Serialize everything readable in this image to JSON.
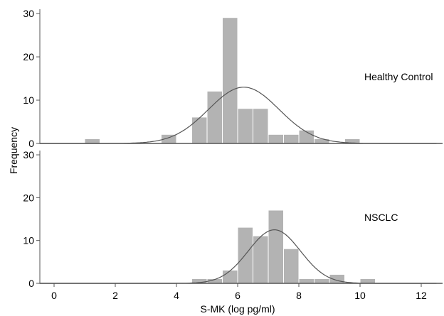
{
  "chart_data": {
    "type": "bar",
    "chart_kind": "histogram with fitted normal curves",
    "xlabel": "S-MK (log pg/ml)",
    "ylabel": "Frequency",
    "xlim": [
      -0.5,
      12.5
    ],
    "x_ticks": [
      0,
      2,
      4,
      6,
      8,
      10,
      12
    ],
    "bin_width": 0.5,
    "grid": false,
    "panels": [
      {
        "label": "Healthy Control",
        "ylim": [
          0,
          31
        ],
        "y_ticks": [
          0,
          10,
          20,
          30
        ],
        "bins": [
          {
            "x0": 1.0,
            "count": 1
          },
          {
            "x0": 3.5,
            "count": 2
          },
          {
            "x0": 4.5,
            "count": 6
          },
          {
            "x0": 5.0,
            "count": 12
          },
          {
            "x0": 5.5,
            "count": 29
          },
          {
            "x0": 6.0,
            "count": 8
          },
          {
            "x0": 6.5,
            "count": 8
          },
          {
            "x0": 7.0,
            "count": 2
          },
          {
            "x0": 7.5,
            "count": 2
          },
          {
            "x0": 8.0,
            "count": 3
          },
          {
            "x0": 8.5,
            "count": 1
          },
          {
            "x0": 9.5,
            "count": 1
          }
        ],
        "normal_fit": {
          "mean": 6.2,
          "sd": 1.15,
          "peak": 13
        }
      },
      {
        "label": "NSCLC",
        "ylim": [
          0,
          31
        ],
        "y_ticks": [
          0,
          10,
          20,
          30
        ],
        "bins": [
          {
            "x0": 4.5,
            "count": 1
          },
          {
            "x0": 5.0,
            "count": 1
          },
          {
            "x0": 5.5,
            "count": 3
          },
          {
            "x0": 6.0,
            "count": 13
          },
          {
            "x0": 6.5,
            "count": 11
          },
          {
            "x0": 7.0,
            "count": 17
          },
          {
            "x0": 7.5,
            "count": 8
          },
          {
            "x0": 8.0,
            "count": 1
          },
          {
            "x0": 8.5,
            "count": 1
          },
          {
            "x0": 9.0,
            "count": 2
          },
          {
            "x0": 10.0,
            "count": 1
          }
        ],
        "normal_fit": {
          "mean": 7.2,
          "sd": 0.85,
          "peak": 12.5
        }
      }
    ]
  }
}
